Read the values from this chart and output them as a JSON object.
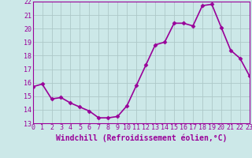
{
  "x": [
    0,
    1,
    2,
    3,
    4,
    5,
    6,
    7,
    8,
    9,
    10,
    11,
    12,
    13,
    14,
    15,
    16,
    17,
    18,
    19,
    20,
    21,
    22,
    23
  ],
  "y": [
    15.7,
    15.9,
    14.8,
    14.9,
    14.5,
    14.2,
    13.9,
    13.4,
    13.4,
    13.5,
    14.3,
    15.8,
    17.3,
    18.8,
    19.0,
    20.4,
    20.4,
    20.2,
    21.7,
    21.8,
    20.1,
    18.4,
    17.8,
    16.5
  ],
  "line_color": "#990099",
  "marker": "D",
  "marker_size": 2.5,
  "bg_color": "#cce8e8",
  "grid_color": "#adc8c8",
  "ylim": [
    13,
    22
  ],
  "xlim": [
    0,
    23
  ],
  "yticks": [
    13,
    14,
    15,
    16,
    17,
    18,
    19,
    20,
    21,
    22
  ],
  "xticks": [
    0,
    1,
    2,
    3,
    4,
    5,
    6,
    7,
    8,
    9,
    10,
    11,
    12,
    13,
    14,
    15,
    16,
    17,
    18,
    19,
    20,
    21,
    22,
    23
  ],
  "xlabel": "Windchill (Refroidissement éolien,°C)",
  "xlabel_fontsize": 7,
  "tick_fontsize": 6,
  "line_width": 1.2
}
